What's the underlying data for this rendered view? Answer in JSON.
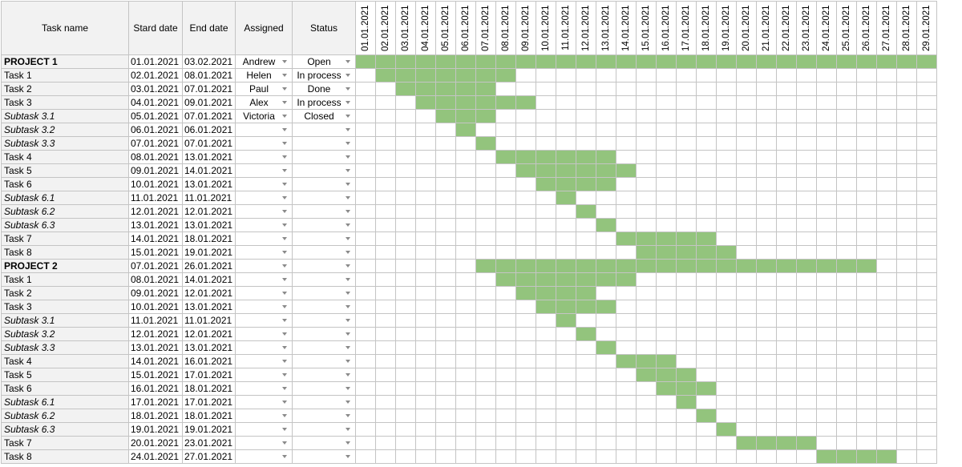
{
  "headers": {
    "task_name": "Task name",
    "start_date": "Stard date",
    "end_date": "End date",
    "assigned": "Assigned",
    "status": "Status"
  },
  "dates": [
    "01.01.2021",
    "02.01.2021",
    "03.01.2021",
    "04.01.2021",
    "05.01.2021",
    "06.01.2021",
    "07.01.2021",
    "08.01.2021",
    "09.01.2021",
    "10.01.2021",
    "11.01.2021",
    "12.01.2021",
    "13.01.2021",
    "14.01.2021",
    "15.01.2021",
    "16.01.2021",
    "17.01.2021",
    "18.01.2021",
    "19.01.2021",
    "20.01.2021",
    "21.01.2021",
    "22.01.2021",
    "23.01.2021",
    "24.01.2021",
    "25.01.2021",
    "26.01.2021",
    "27.01.2021",
    "28.01.2021",
    "29.01.2021"
  ],
  "fill_color": "#93c47d",
  "rows": [
    {
      "name": "PROJECT 1",
      "kind": "project",
      "start": "01.01.2021",
      "end": "03.02.2021",
      "assigned": "Andrew",
      "status": "Open"
    },
    {
      "name": "Task 1",
      "kind": "task",
      "start": "02.01.2021",
      "end": "08.01.2021",
      "assigned": "Helen",
      "status": "In process"
    },
    {
      "name": "Task 2",
      "kind": "task",
      "start": "03.01.2021",
      "end": "07.01.2021",
      "assigned": "Paul",
      "status": "Done"
    },
    {
      "name": "Task 3",
      "kind": "task",
      "start": "04.01.2021",
      "end": "09.01.2021",
      "assigned": "Alex",
      "status": "In process"
    },
    {
      "name": "Subtask 3.1",
      "kind": "subtask",
      "start": "05.01.2021",
      "end": "07.01.2021",
      "assigned": "Victoria",
      "status": "Closed"
    },
    {
      "name": "Subtask 3.2",
      "kind": "subtask",
      "start": "06.01.2021",
      "end": "06.01.2021",
      "assigned": "",
      "status": ""
    },
    {
      "name": "Subtask 3.3",
      "kind": "subtask",
      "start": "07.01.2021",
      "end": "07.01.2021",
      "assigned": "",
      "status": ""
    },
    {
      "name": "Task 4",
      "kind": "task",
      "start": "08.01.2021",
      "end": "13.01.2021",
      "assigned": "",
      "status": ""
    },
    {
      "name": "Task 5",
      "kind": "task",
      "start": "09.01.2021",
      "end": "14.01.2021",
      "assigned": "",
      "status": ""
    },
    {
      "name": "Task 6",
      "kind": "task",
      "start": "10.01.2021",
      "end": "13.01.2021",
      "assigned": "",
      "status": ""
    },
    {
      "name": "Subtask 6.1",
      "kind": "subtask",
      "start": "11.01.2021",
      "end": "11.01.2021",
      "assigned": "",
      "status": ""
    },
    {
      "name": "Subtask 6.2",
      "kind": "subtask",
      "start": "12.01.2021",
      "end": "12.01.2021",
      "assigned": "",
      "status": ""
    },
    {
      "name": "Subtask 6.3",
      "kind": "subtask",
      "start": "13.01.2021",
      "end": "13.01.2021",
      "assigned": "",
      "status": ""
    },
    {
      "name": "Task 7",
      "kind": "task",
      "start": "14.01.2021",
      "end": "18.01.2021",
      "assigned": "",
      "status": ""
    },
    {
      "name": "Task 8",
      "kind": "task",
      "start": "15.01.2021",
      "end": "19.01.2021",
      "assigned": "",
      "status": ""
    },
    {
      "name": "PROJECT 2",
      "kind": "project",
      "start": "07.01.2021",
      "end": "26.01.2021",
      "assigned": "",
      "status": ""
    },
    {
      "name": "Task 1",
      "kind": "task",
      "start": "08.01.2021",
      "end": "14.01.2021",
      "assigned": "",
      "status": ""
    },
    {
      "name": "Task 2",
      "kind": "task",
      "start": "09.01.2021",
      "end": "12.01.2021",
      "assigned": "",
      "status": ""
    },
    {
      "name": "Task 3",
      "kind": "task",
      "start": "10.01.2021",
      "end": "13.01.2021",
      "assigned": "",
      "status": ""
    },
    {
      "name": "Subtask 3.1",
      "kind": "subtask",
      "start": "11.01.2021",
      "end": "11.01.2021",
      "assigned": "",
      "status": ""
    },
    {
      "name": "Subtask 3.2",
      "kind": "subtask",
      "start": "12.01.2021",
      "end": "12.01.2021",
      "assigned": "",
      "status": ""
    },
    {
      "name": "Subtask 3.3",
      "kind": "subtask",
      "start": "13.01.2021",
      "end": "13.01.2021",
      "assigned": "",
      "status": ""
    },
    {
      "name": "Task 4",
      "kind": "task",
      "start": "14.01.2021",
      "end": "16.01.2021",
      "assigned": "",
      "status": ""
    },
    {
      "name": "Task 5",
      "kind": "task",
      "start": "15.01.2021",
      "end": "17.01.2021",
      "assigned": "",
      "status": ""
    },
    {
      "name": "Task 6",
      "kind": "task",
      "start": "16.01.2021",
      "end": "18.01.2021",
      "assigned": "",
      "status": ""
    },
    {
      "name": "Subtask 6.1",
      "kind": "subtask",
      "start": "17.01.2021",
      "end": "17.01.2021",
      "assigned": "",
      "status": ""
    },
    {
      "name": "Subtask 6.2",
      "kind": "subtask",
      "start": "18.01.2021",
      "end": "18.01.2021",
      "assigned": "",
      "status": ""
    },
    {
      "name": "Subtask 6.3",
      "kind": "subtask",
      "start": "19.01.2021",
      "end": "19.01.2021",
      "assigned": "",
      "status": ""
    },
    {
      "name": "Task 7",
      "kind": "task",
      "start": "20.01.2021",
      "end": "23.01.2021",
      "assigned": "",
      "status": ""
    },
    {
      "name": "Task 8",
      "kind": "task",
      "start": "24.01.2021",
      "end": "27.01.2021",
      "assigned": "",
      "status": ""
    }
  ]
}
